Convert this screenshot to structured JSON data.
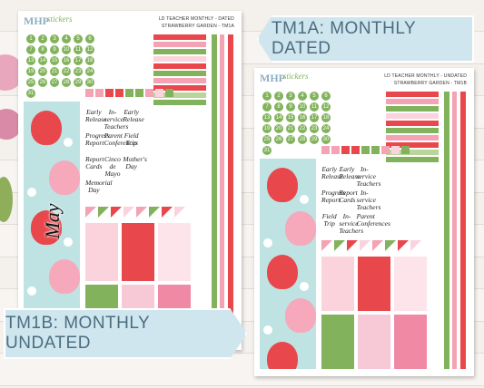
{
  "banners": {
    "top": "TM1A: MONTHLY DATED",
    "bottom": "TM1B: MONTHLY UNDATED"
  },
  "sheets": [
    {
      "logo": "MHP",
      "logo_sub": "stickers",
      "header_line1": "LD TEACHER MONTHLY - DATED",
      "header_line2": "STRAWBERRY GARDEN - TM1A",
      "month": "May",
      "day_numbers": [
        1,
        2,
        3,
        4,
        5,
        6,
        7,
        8,
        9,
        10,
        11,
        12,
        13,
        14,
        15,
        16,
        17,
        18,
        19,
        20,
        21,
        22,
        23,
        24,
        25,
        26,
        27,
        28,
        29,
        30,
        31
      ],
      "words": [
        "Early Release",
        "In-service Teachers",
        "Early Release",
        "Progress Report",
        "Parent Conferences",
        "Field Trip",
        "Report Cards",
        "Cinco de Mayo",
        "Mother's Day",
        "Memorial Day"
      ]
    },
    {
      "logo": "MHP",
      "logo_sub": "stickers",
      "header_line1": "LD TEACHER MONTHLY - UNDATED",
      "header_line2": "STRAWBERRY GARDEN - TM1B",
      "day_numbers": [
        1,
        2,
        3,
        4,
        5,
        6,
        7,
        8,
        9,
        10,
        11,
        12,
        13,
        14,
        15,
        16,
        17,
        18,
        19,
        20,
        21,
        22,
        23,
        24,
        25,
        26,
        27,
        28,
        29,
        30,
        31
      ],
      "words": [
        "Early Release",
        "Early Release",
        "In-service Teachers",
        "Progress Report",
        "Report Cards",
        "In-service Teachers",
        "Field Trip",
        "In-service Teachers",
        "Parent Conferences"
      ]
    }
  ]
}
